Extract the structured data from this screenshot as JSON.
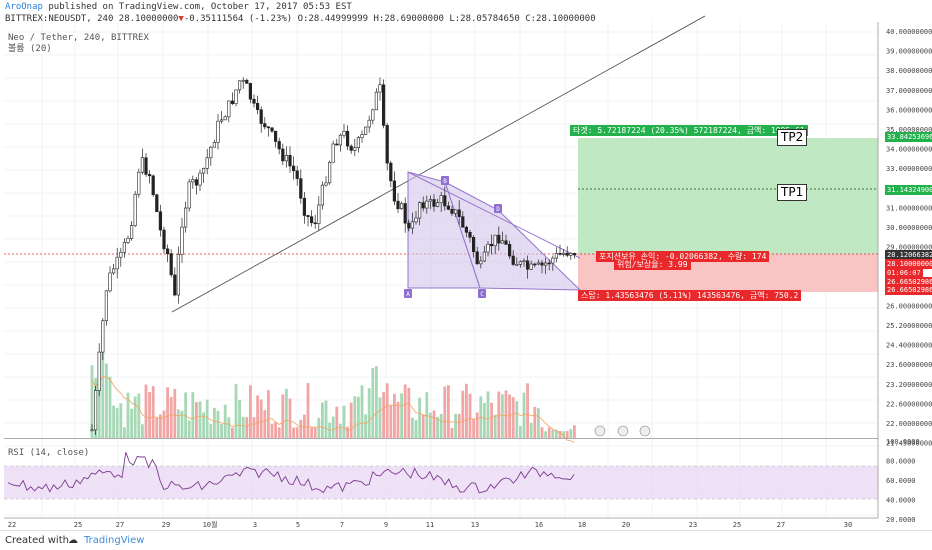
{
  "header": {
    "author": "AroOnap",
    "published": "published on TradingView.com, October 17, 2017 05:53 EST",
    "symbol": "BITTREX:NEOUSDT, 240",
    "last": "28.10000000",
    "arrow": "▼",
    "change": "-0.35111564 (-1.23%)",
    "ohlc": "O:28.44999999 H:28.69000000 L:28.05784650 C:28.10000000"
  },
  "legend": {
    "title": "Neo / Tether, 240, BITTREX",
    "volume": "볼륨 (20)"
  },
  "rsi_label": "RSI (14, close)",
  "price_axis": [
    "40.00000000",
    "39.00000000",
    "38.00000000",
    "37.00000000",
    "36.00000000",
    "35.00000000",
    "34.00000000",
    "33.00000000",
    "32.00000000",
    "31.00000000",
    "30.00000000",
    "29.00000000",
    "28.00000000",
    "27.00000000",
    "26.00000000",
    "25.20000000",
    "24.40000000",
    "23.60000000",
    "23.20000000",
    "22.60000000",
    "22.00000000",
    "21.45000000"
  ],
  "rsi_axis": [
    "100.0000",
    "80.0000",
    "60.0000",
    "40.0000",
    "20.0000"
  ],
  "price_tags": {
    "tp2": "33.84253696",
    "tp1": "31.14324900",
    "last": "28.12066382",
    "close": "28.10000000",
    "timer": "01:06:07",
    "stop": "26.66502986",
    "stop2": "26.66502986"
  },
  "time_axis": [
    "22",
    "25",
    "27",
    "29",
    "10월",
    "3",
    "5",
    "7",
    "9",
    "11",
    "13",
    "16",
    "18",
    "20",
    "23",
    "25",
    "27",
    "30"
  ],
  "pattern_points": [
    "A",
    "B",
    "C",
    "D"
  ],
  "tp_labels": {
    "tp1": "TP1",
    "tp2": "TP2"
  },
  "position": {
    "target": "타겟: 5.72187224 (20.35%) 572187224, 금액: 1995.61",
    "open1": "포지션보유 손익: -0.02066382, 수량: 174",
    "open2": "위험/보상율: 3.99",
    "stop": "스탑: 1.43563476 (5.11%) 143563476, 금액: 750.2"
  },
  "footer": {
    "created": "Created with",
    "brand": "TradingView"
  },
  "colors": {
    "up": "#ffffff",
    "down": "#222222",
    "target_fill": "#bfe8c3",
    "stop_fill": "#f8c4c4",
    "pattern": "#b39ddb",
    "rsi": "#7b3a8e"
  }
}
